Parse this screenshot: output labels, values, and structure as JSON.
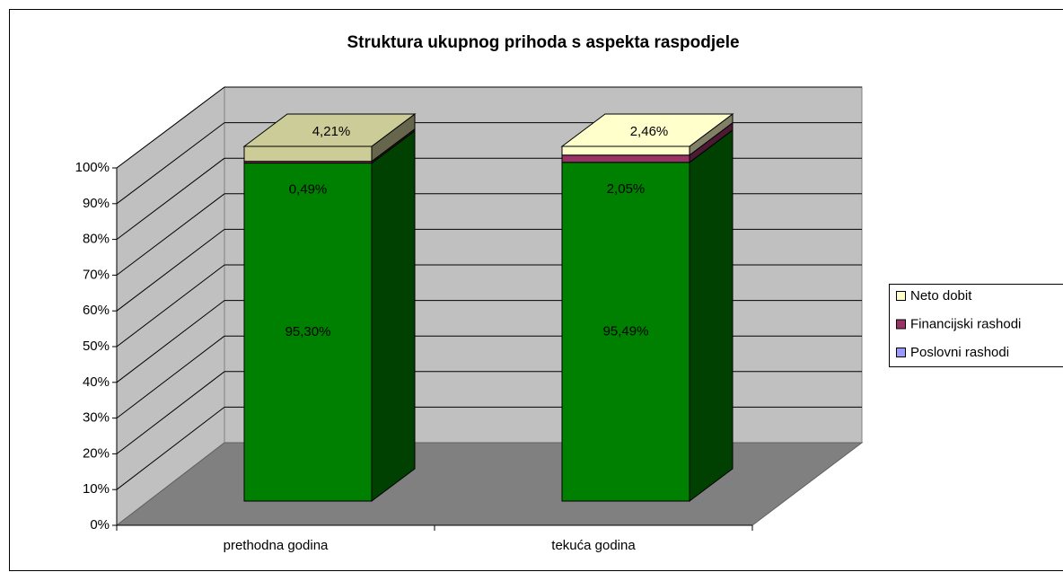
{
  "chart_data": {
    "type": "bar3d_stacked",
    "title": "Struktura ukupnog prihoda s aspekta raspodjele",
    "categories": [
      "prethodna godina",
      "tekuća godina"
    ],
    "series": [
      {
        "name": "Poslovni rashodi",
        "color": "#008000",
        "legend_color": "#9999ff",
        "values": [
          95.3,
          95.49
        ],
        "value_labels": [
          "95,30%",
          "95,49%"
        ]
      },
      {
        "name": "Financijski rashodi",
        "color": "#993366",
        "legend_color": "#993366",
        "values": [
          0.49,
          2.05
        ],
        "value_labels": [
          "0,49%",
          "2,05%"
        ]
      },
      {
        "name": "Neto dobit",
        "color": "#ffffcc",
        "point_colors": [
          "#cccc99",
          "#ffffcc"
        ],
        "legend_color": "#ffffcc",
        "values": [
          4.21,
          2.46
        ],
        "value_labels": [
          "4,21%",
          "2,46%"
        ]
      }
    ],
    "ylim": [
      0,
      100
    ],
    "yticks": [
      {
        "value": 0,
        "label": "0%"
      },
      {
        "value": 10,
        "label": "10%"
      },
      {
        "value": 20,
        "label": "20%"
      },
      {
        "value": 30,
        "label": "30%"
      },
      {
        "value": 40,
        "label": "40%"
      },
      {
        "value": 50,
        "label": "50%"
      },
      {
        "value": 60,
        "label": "60%"
      },
      {
        "value": 70,
        "label": "70%"
      },
      {
        "value": 80,
        "label": "80%"
      },
      {
        "value": 90,
        "label": "90%"
      },
      {
        "value": 100,
        "label": "100%"
      }
    ],
    "grid": true,
    "legend": "right"
  }
}
